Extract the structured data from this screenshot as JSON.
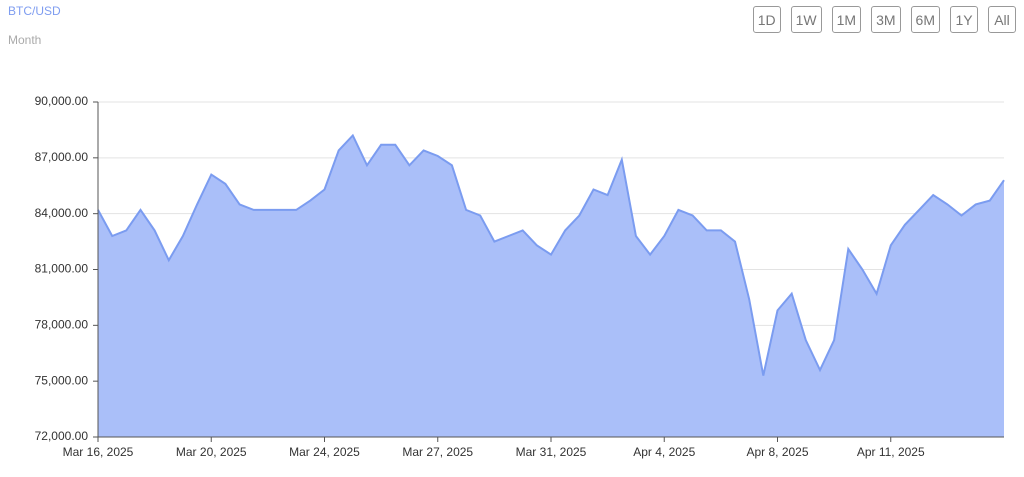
{
  "range_buttons": [
    "1D",
    "1W",
    "1M",
    "3M",
    "6M",
    "1Y",
    "All"
  ],
  "chart_data": {
    "type": "area",
    "title": "BTC/USD",
    "subtitle": "Month",
    "categories": [
      "Mar 16, 2025",
      null,
      null,
      null,
      null,
      null,
      null,
      null,
      "Mar 20, 2025",
      null,
      null,
      null,
      null,
      null,
      null,
      null,
      "Mar 24, 2025",
      null,
      null,
      null,
      null,
      null,
      null,
      null,
      "Mar 27, 2025",
      null,
      null,
      null,
      null,
      null,
      null,
      null,
      "Mar 31, 2025",
      null,
      null,
      null,
      null,
      null,
      null,
      null,
      "Apr 4, 2025",
      null,
      null,
      null,
      null,
      null,
      null,
      null,
      "Apr 8, 2025",
      null,
      null,
      null,
      null,
      null,
      null,
      null,
      "Apr 11, 2025",
      null,
      null,
      null,
      null,
      null,
      null,
      null,
      null
    ],
    "values": [
      84200,
      82800,
      83100,
      84200,
      83100,
      81500,
      82800,
      84500,
      86100,
      85600,
      84500,
      84200,
      84200,
      84200,
      84200,
      84700,
      85300,
      87400,
      88200,
      86600,
      87700,
      87700,
      86600,
      87400,
      87100,
      86600,
      84200,
      83900,
      82500,
      82800,
      83100,
      82300,
      81800,
      83100,
      83900,
      85300,
      85000,
      86900,
      82800,
      81800,
      82800,
      84200,
      83900,
      83100,
      83100,
      82500,
      79400,
      75300,
      78800,
      79700,
      77200,
      75600,
      77200,
      82100,
      81000,
      79700,
      82300,
      83400,
      84200,
      85000,
      84500,
      83900,
      84500,
      84700,
      85800
    ],
    "line_color": "#7b9cf0",
    "fill_color": "#aabff9",
    "grid": true,
    "ylim": [
      72000,
      90000
    ],
    "yticks": [
      {
        "value": 72000,
        "label": "72,000.00"
      },
      {
        "value": 75000,
        "label": "75,000.00"
      },
      {
        "value": 78000,
        "label": "78,000.00"
      },
      {
        "value": 81000,
        "label": "81,000.00"
      },
      {
        "value": 84000,
        "label": "84,000.00"
      },
      {
        "value": 87000,
        "label": "87,000.00"
      },
      {
        "value": 90000,
        "label": "90,000.00"
      }
    ]
  }
}
